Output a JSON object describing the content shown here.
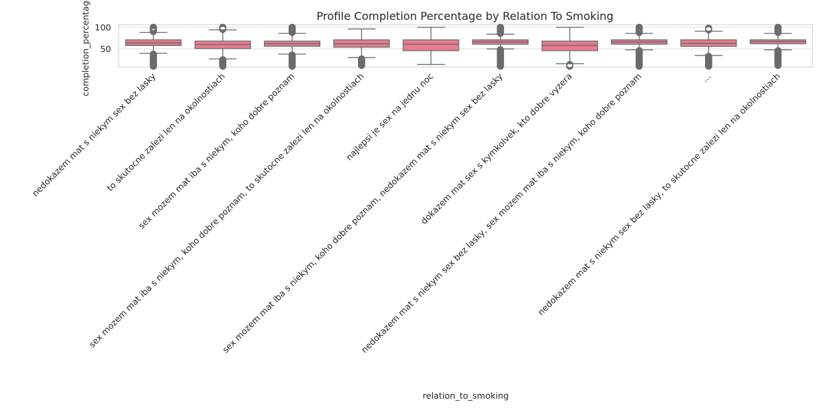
{
  "chart_data": {
    "type": "box",
    "title": "Profile Completion Percentage by Relation To Smoking",
    "xlabel": "relation_to_smoking",
    "ylabel": "completion_percentage",
    "ylim": [
      8,
      106
    ],
    "yticks": [
      50,
      100
    ],
    "grid": true,
    "box_color": "#e77c8e",
    "categories": [
      "nedokazem mat s niekym sex bez lasky",
      "to skutocne zalezi len na okolnostiach",
      "sex mozem mat iba s niekym, koho dobre poznam",
      "sex mozem mat iba s niekym, koho dobre poznam, to skutocne zalezi len na okolnostiach",
      "najlepsi je sex na jednu noc",
      "sex mozem mat iba s niekym, koho dobre poznam, nedokazem mat s niekym sex bez lasky",
      "dokazem mat sex s kymkolvek, kto dobre vyzera",
      "nedokazem mat s niekym sex bez lasky, sex mozem mat iba s niekym, koho dobre poznam",
      "...",
      "nedokazem mat s niekym sex bez lasky, to skutocne zalezi len na okolnostiach"
    ],
    "boxes": [
      {
        "whislo": 40,
        "q1": 58,
        "median": 64,
        "q3": 71,
        "whishi": 88,
        "outliers_low": [
          10,
          38
        ],
        "outliers_high": [
          90,
          100
        ]
      },
      {
        "whislo": 27,
        "q1": 51,
        "median": 60,
        "q3": 68,
        "whishi": 94,
        "outliers_low": [
          10,
          25
        ],
        "outliers_high": [
          95,
          100
        ]
      },
      {
        "whislo": 38,
        "q1": 56,
        "median": 62,
        "q3": 68,
        "whishi": 86,
        "outliers_low": [
          10,
          36
        ],
        "outliers_high": [
          88,
          100
        ]
      },
      {
        "whislo": 30,
        "q1": 54,
        "median": 62,
        "q3": 71,
        "whishi": 96,
        "outliers_low": [
          12,
          27
        ],
        "outliers_high": []
      },
      {
        "whislo": 14,
        "q1": 46,
        "median": 61,
        "q3": 71,
        "whishi": 100,
        "outliers_low": [],
        "outliers_high": []
      },
      {
        "whislo": 50,
        "q1": 61,
        "median": 66,
        "q3": 71,
        "whishi": 84,
        "outliers_low": [
          10,
          48
        ],
        "outliers_high": [
          86,
          100
        ]
      },
      {
        "whislo": 16,
        "q1": 46,
        "median": 58,
        "q3": 68,
        "whishi": 100,
        "outliers_low": [
          10,
          14
        ],
        "outliers_high": []
      },
      {
        "whislo": 48,
        "q1": 61,
        "median": 66,
        "q3": 71,
        "whishi": 86,
        "outliers_low": [
          10,
          46
        ],
        "outliers_high": [
          88,
          100
        ]
      },
      {
        "whislo": 35,
        "q1": 56,
        "median": 63,
        "q3": 71,
        "whishi": 91,
        "outliers_low": [
          10,
          33
        ],
        "outliers_high": [
          94,
          98
        ]
      },
      {
        "whislo": 48,
        "q1": 62,
        "median": 67,
        "q3": 71,
        "whishi": 86,
        "outliers_low": [
          12,
          46
        ],
        "outliers_high": [
          88,
          100
        ]
      }
    ]
  }
}
